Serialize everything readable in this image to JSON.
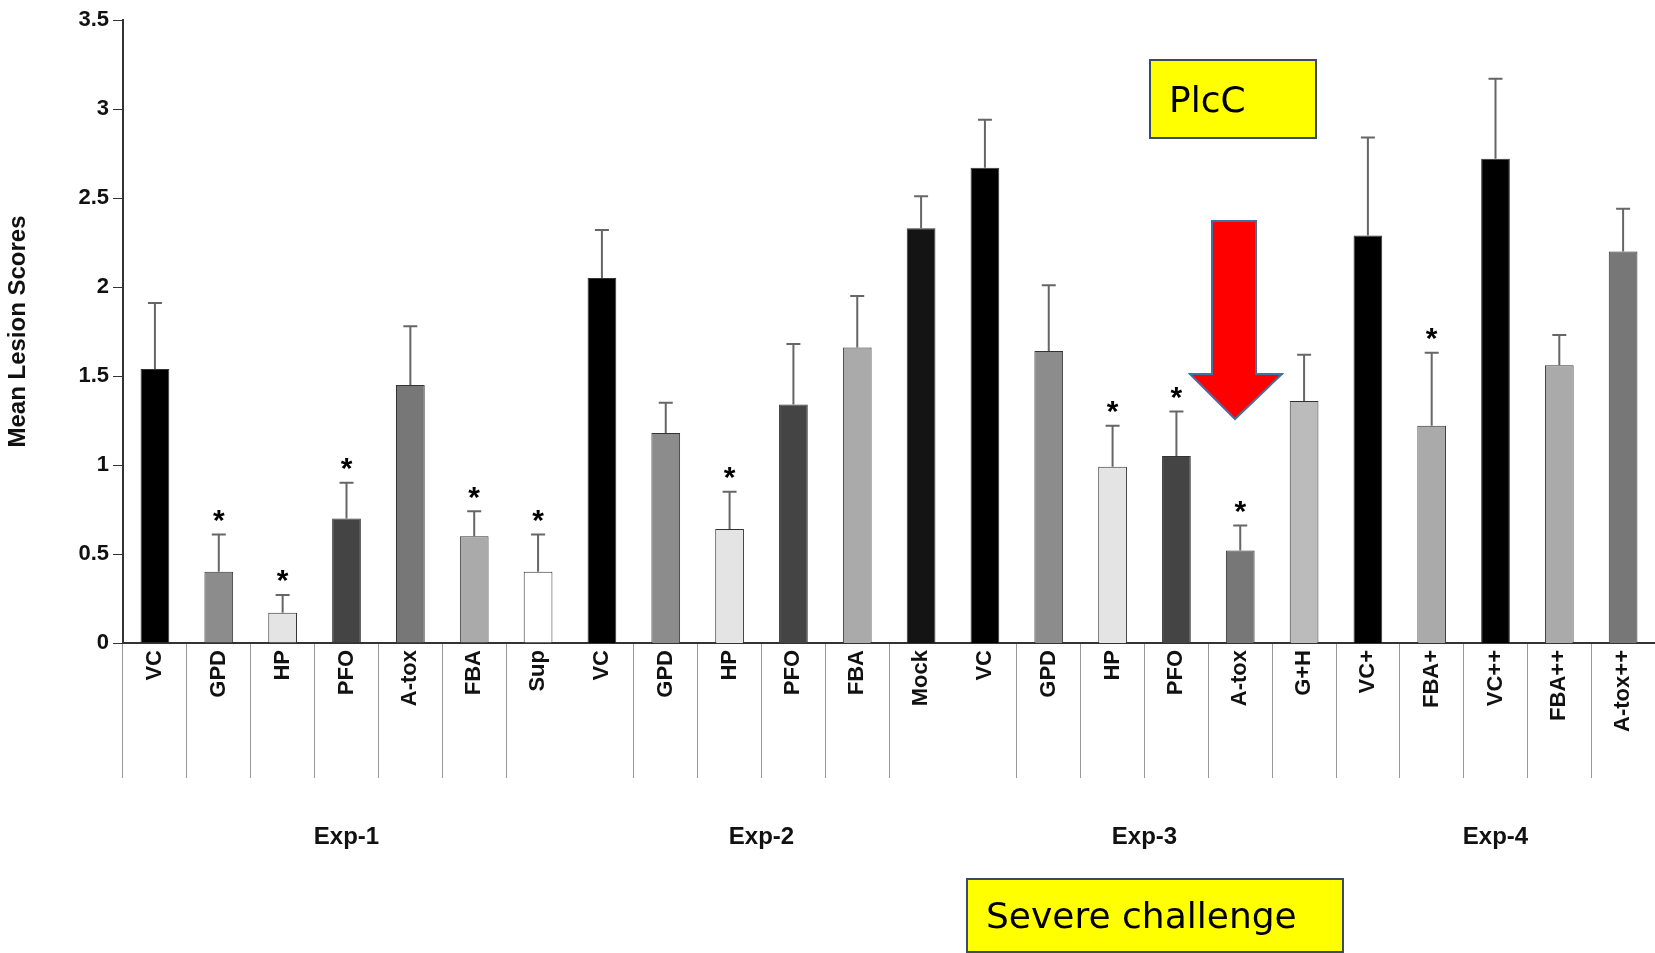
{
  "chart_data": [
    {
      "type": "bar",
      "xlabel": "Exp-1",
      "ylabel": "Mean Lesion Scores",
      "categories": [
        "VC",
        "GPD",
        "HP",
        "PFO",
        "A-tox",
        "FBA",
        "Sup"
      ],
      "values": [
        1.54,
        0.4,
        0.17,
        0.7,
        1.45,
        0.6,
        0.4
      ],
      "colors": [
        "#000000",
        "#8c8c8c",
        "#e4e4e4",
        "#444444",
        "#777777",
        "#aaaaaa",
        "#ffffff"
      ],
      "errors": [
        [
          1.54,
          1.91
        ],
        [
          0.4,
          0.61
        ],
        [
          0.17,
          0.27
        ],
        [
          0.7,
          0.9
        ],
        [
          1.45,
          1.78
        ],
        [
          0.6,
          0.74
        ],
        [
          0.4,
          0.61
        ]
      ],
      "value_labels": [
        null,
        "*",
        "*",
        "*",
        null,
        "*",
        "*"
      ],
      "ylim": [
        0,
        3.5
      ],
      "yticks": [
        0,
        0.5,
        1,
        1.5,
        2,
        2.5,
        3,
        3.5
      ],
      "grid": false,
      "legend": false
    },
    {
      "type": "bar",
      "xlabel": "Exp-2",
      "categories": [
        "VC",
        "GPD",
        "HP",
        "PFO",
        "FBA",
        "Mock"
      ],
      "values": [
        2.05,
        1.18,
        0.64,
        1.34,
        1.66,
        2.33
      ],
      "colors": [
        "#000000",
        "#8c8c8c",
        "#e4e4e4",
        "#444444",
        "#aaaaaa",
        "#141414"
      ],
      "errors": [
        [
          2.05,
          2.32
        ],
        [
          1.18,
          1.35
        ],
        [
          0.64,
          0.85
        ],
        [
          1.34,
          1.68
        ],
        [
          1.66,
          1.95
        ],
        [
          2.33,
          2.51
        ]
      ],
      "value_labels": [
        null,
        null,
        "*",
        null,
        null,
        null
      ],
      "ylim": [
        0,
        3.5
      ],
      "tick_labels": "x",
      "grid": false,
      "legend": false
    },
    {
      "type": "bar",
      "xlabel": "Exp-3",
      "categories": [
        "VC",
        "GPD",
        "HP",
        "PFO",
        "A-tox",
        "G+H"
      ],
      "values": [
        2.67,
        1.64,
        0.99,
        1.05,
        0.52,
        1.36
      ],
      "colors": [
        "#000000",
        "#8c8c8c",
        "#e4e4e4",
        "#444444",
        "#777777",
        "#bbbbbb"
      ],
      "errors": [
        [
          2.67,
          2.94
        ],
        [
          1.64,
          2.01
        ],
        [
          0.99,
          1.22
        ],
        [
          1.05,
          1.3
        ],
        [
          0.52,
          0.66
        ],
        [
          1.36,
          1.62
        ]
      ],
      "value_labels": [
        null,
        null,
        "*",
        "*",
        "*",
        null
      ],
      "annotations": [
        "PlcC",
        "Severe challenge"
      ],
      "ylim": [
        0,
        3.5
      ],
      "tick_labels": "x",
      "grid": false,
      "legend": false
    },
    {
      "type": "bar",
      "xlabel": "Exp-4",
      "categories": [
        "VC+",
        "FBA+",
        "VC++",
        "FBA++",
        "A-tox++"
      ],
      "values": [
        2.29,
        1.22,
        2.72,
        1.56,
        2.2
      ],
      "colors": [
        "#000000",
        "#aaaaaa",
        "#000000",
        "#aaaaaa",
        "#777777"
      ],
      "errors": [
        [
          2.29,
          2.84
        ],
        [
          1.22,
          1.63
        ],
        [
          2.72,
          3.17
        ],
        [
          1.56,
          1.73
        ],
        [
          2.2,
          2.44
        ]
      ],
      "value_labels": [
        null,
        "*",
        null,
        null,
        null
      ],
      "ylim": [
        0,
        3.5
      ],
      "tick_labels": "x",
      "grid": false,
      "legend": false
    }
  ]
}
